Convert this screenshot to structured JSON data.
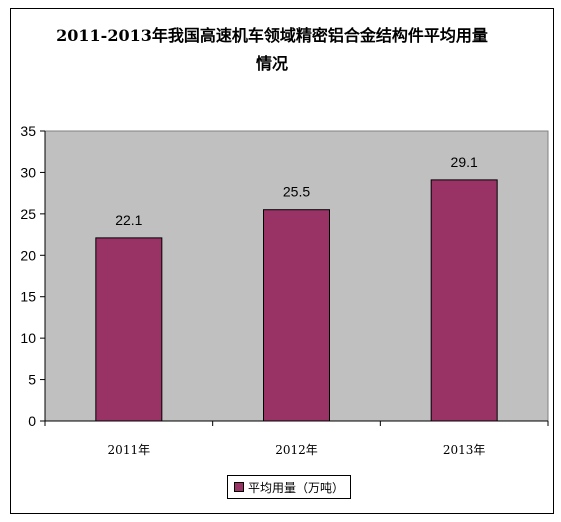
{
  "chart_data": {
    "type": "bar",
    "title": [
      "2011-2013年我国高速机车领域精密铝合金结构件平均用量",
      "情况"
    ],
    "categories": [
      "2011年",
      "2012年",
      "2013年"
    ],
    "series": [
      {
        "name": "平均用量（万吨）",
        "values": [
          22.1,
          25.5,
          29.1
        ],
        "color": "#993366"
      }
    ],
    "data_labels": [
      "22.1",
      "25.5",
      "29.1"
    ],
    "yticks": [
      "0",
      "5",
      "10",
      "15",
      "20",
      "25",
      "30",
      "35"
    ],
    "ylim": [
      0,
      35
    ],
    "grid": false,
    "plot_background": "#c0c0c0",
    "legend_position": "bottom"
  }
}
